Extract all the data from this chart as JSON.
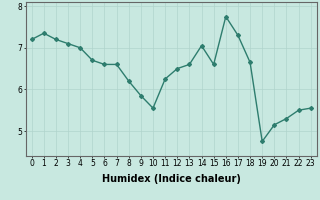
{
  "x": [
    0,
    1,
    2,
    3,
    4,
    5,
    6,
    7,
    8,
    9,
    10,
    11,
    12,
    13,
    14,
    15,
    16,
    17,
    18,
    19,
    20,
    21,
    22,
    23
  ],
  "y": [
    7.2,
    7.35,
    7.2,
    7.1,
    7.0,
    6.7,
    6.6,
    6.6,
    6.2,
    5.85,
    5.55,
    6.25,
    6.5,
    6.6,
    7.05,
    6.6,
    7.75,
    7.3,
    6.65,
    4.75,
    5.15,
    5.3,
    5.5,
    5.55
  ],
  "line_color": "#2e7d6e",
  "marker": "D",
  "marker_size": 2.0,
  "bg_color": "#c8e8e0",
  "grid_color": "#b0d4cc",
  "xlabel": "Humidex (Indice chaleur)",
  "ylabel": "",
  "ylim": [
    4.4,
    8.1
  ],
  "xlim": [
    -0.5,
    23.5
  ],
  "yticks": [
    5,
    6,
    7,
    8
  ],
  "xticks": [
    0,
    1,
    2,
    3,
    4,
    5,
    6,
    7,
    8,
    9,
    10,
    11,
    12,
    13,
    14,
    15,
    16,
    17,
    18,
    19,
    20,
    21,
    22,
    23
  ],
  "tick_label_fontsize": 5.5,
  "xlabel_fontsize": 7.0,
  "linewidth": 1.0,
  "axis_color": "#666666"
}
